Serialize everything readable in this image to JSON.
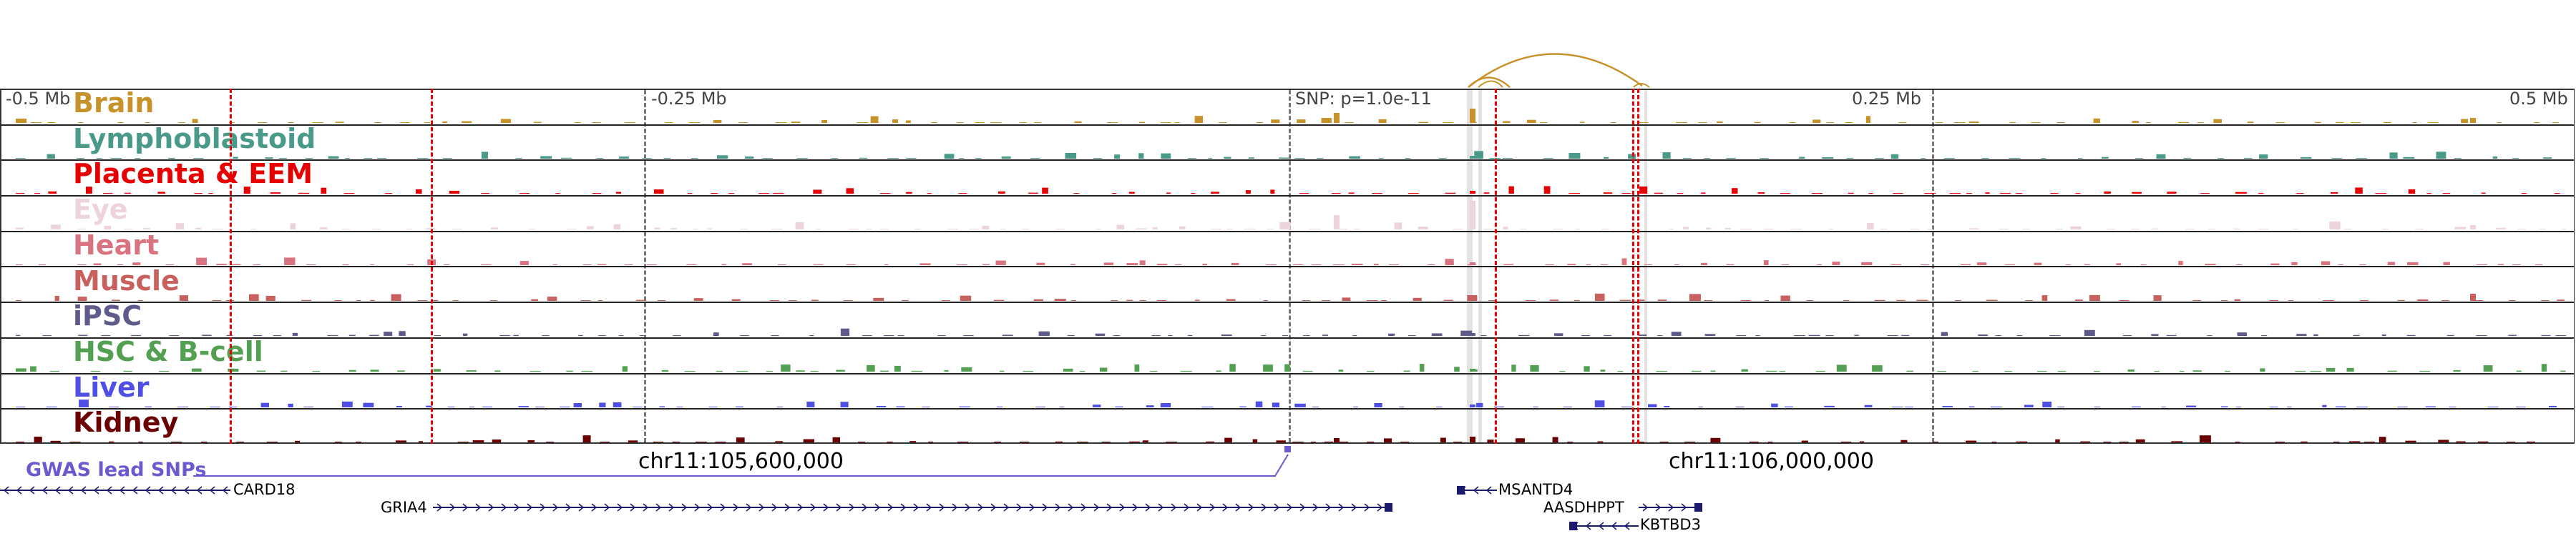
{
  "axis": {
    "labels": [
      "-0.5 Mb",
      "-0.25 Mb",
      "SNP: p=1.0e-11",
      "0.25 Mb",
      "0.5 Mb"
    ],
    "coords": [
      "chr11:105,600,000",
      "chr11:106,000,000"
    ]
  },
  "tracks": [
    {
      "name": "Brain",
      "color": "#c8922a"
    },
    {
      "name": "Lymphoblastoid",
      "color": "#4a9a8a"
    },
    {
      "name": "Placenta & EEM",
      "color": "#e60000"
    },
    {
      "name": "Eye",
      "color": "#ecd3dc"
    },
    {
      "name": "Heart",
      "color": "#d9737f"
    },
    {
      "name": "Muscle",
      "color": "#c8615e"
    },
    {
      "name": "iPSC",
      "color": "#5e5a8a"
    },
    {
      "name": "HSC & B-cell",
      "color": "#53a053"
    },
    {
      "name": "Liver",
      "color": "#4f4fe6"
    },
    {
      "name": "Kidney",
      "color": "#6b0000"
    }
  ],
  "gwas": {
    "label": "GWAS lead SNPs",
    "color": "#6a5acd"
  },
  "genes": [
    {
      "name": "CARD18",
      "strand": "-"
    },
    {
      "name": "GRIA4",
      "strand": "+"
    },
    {
      "name": "MSANTD4",
      "strand": "-"
    },
    {
      "name": "AASDHPPT",
      "strand": "+"
    },
    {
      "name": "KBTBD3",
      "strand": "-"
    }
  ],
  "colors": {
    "gene": "#1a1a6e",
    "loop": "#c8922a",
    "highlight": "#e00000"
  }
}
